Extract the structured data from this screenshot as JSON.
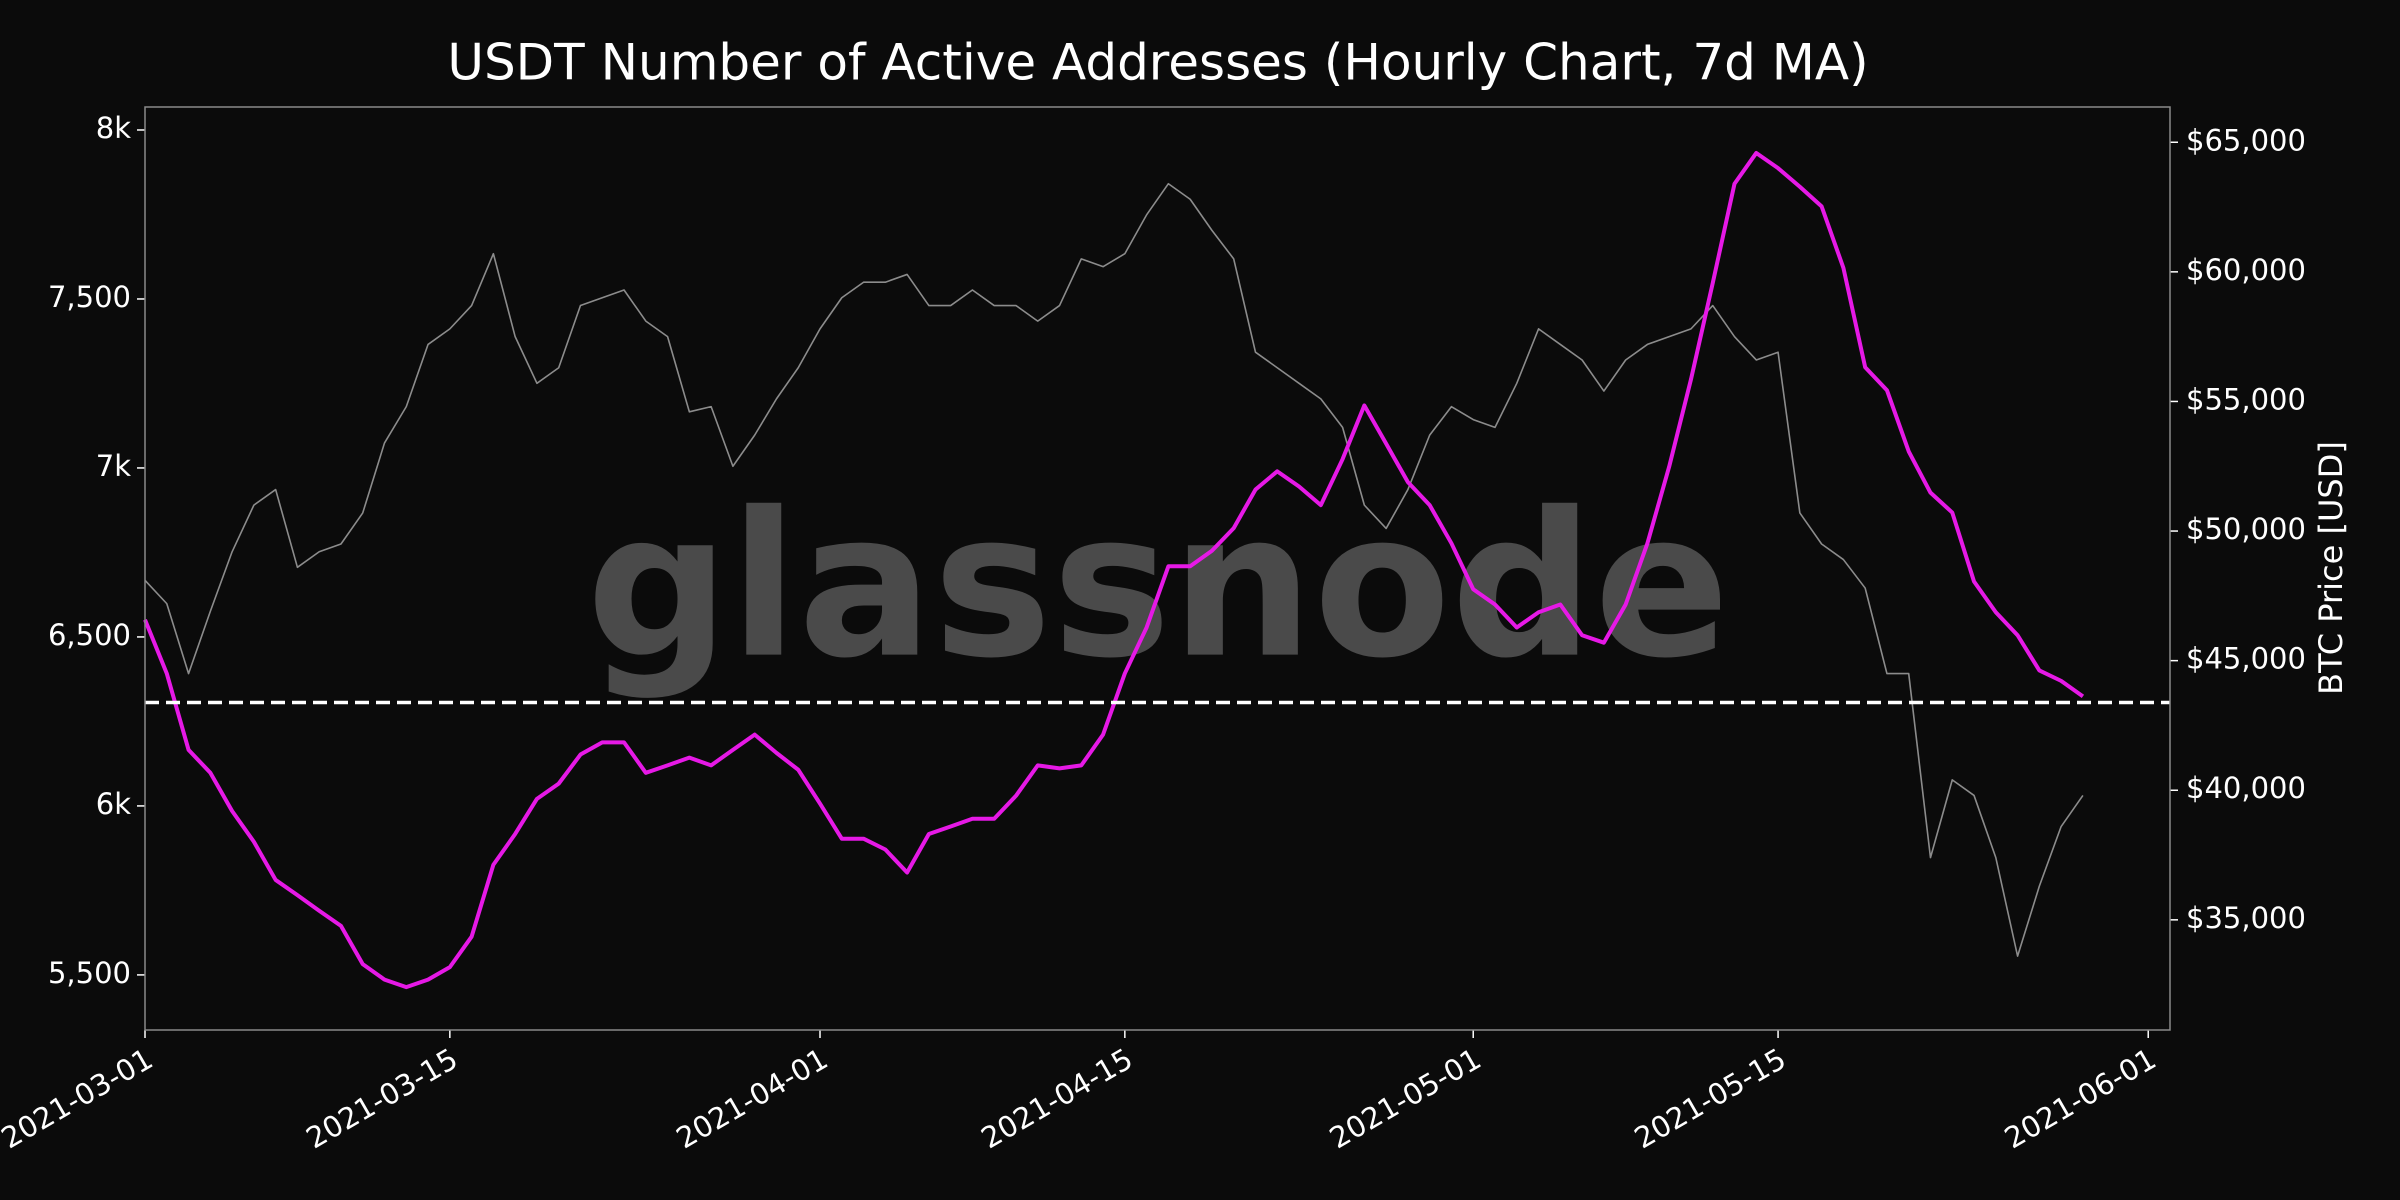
{
  "chart_data": {
    "type": "line",
    "title": "USDT Number of Active Addresses (Hourly Chart, 7d MA)",
    "y2_label": "BTC Price [USD]",
    "watermark": "glassnode",
    "x": [
      "2021-03-01",
      "2021-03-02",
      "2021-03-03",
      "2021-03-04",
      "2021-03-05",
      "2021-03-06",
      "2021-03-07",
      "2021-03-08",
      "2021-03-09",
      "2021-03-10",
      "2021-03-11",
      "2021-03-12",
      "2021-03-13",
      "2021-03-14",
      "2021-03-15",
      "2021-03-16",
      "2021-03-17",
      "2021-03-18",
      "2021-03-19",
      "2021-03-20",
      "2021-03-21",
      "2021-03-22",
      "2021-03-23",
      "2021-03-24",
      "2021-03-25",
      "2021-03-26",
      "2021-03-27",
      "2021-03-28",
      "2021-03-29",
      "2021-03-30",
      "2021-03-31",
      "2021-04-01",
      "2021-04-02",
      "2021-04-03",
      "2021-04-04",
      "2021-04-05",
      "2021-04-06",
      "2021-04-07",
      "2021-04-08",
      "2021-04-09",
      "2021-04-10",
      "2021-04-11",
      "2021-04-12",
      "2021-04-13",
      "2021-04-14",
      "2021-04-15",
      "2021-04-16",
      "2021-04-17",
      "2021-04-18",
      "2021-04-19",
      "2021-04-20",
      "2021-04-21",
      "2021-04-22",
      "2021-04-23",
      "2021-04-24",
      "2021-04-25",
      "2021-04-26",
      "2021-04-27",
      "2021-04-28",
      "2021-04-29",
      "2021-04-30",
      "2021-05-01",
      "2021-05-02",
      "2021-05-03",
      "2021-05-04",
      "2021-05-05",
      "2021-05-06",
      "2021-05-07",
      "2021-05-08",
      "2021-05-09",
      "2021-05-10",
      "2021-05-11",
      "2021-05-12",
      "2021-05-13",
      "2021-05-14",
      "2021-05-15",
      "2021-05-16",
      "2021-05-17",
      "2021-05-18",
      "2021-05-19",
      "2021-05-20",
      "2021-05-21",
      "2021-05-22",
      "2021-05-23",
      "2021-05-24",
      "2021-05-25",
      "2021-05-26",
      "2021-05-27",
      "2021-05-28",
      "2021-05-29"
    ],
    "series": [
      {
        "color": "#8c8c8c",
        "axis": "y2",
        "values": [
          48100,
          47200,
          44500,
          46900,
          49200,
          51000,
          51600,
          48600,
          49200,
          49500,
          50700,
          53400,
          54800,
          57200,
          57800,
          58700,
          60700,
          57500,
          55700,
          56300,
          58700,
          59000,
          59300,
          58100,
          57500,
          54600,
          54800,
          52500,
          53700,
          55100,
          56300,
          57800,
          59000,
          59600,
          59600,
          59900,
          58700,
          58700,
          59300,
          58700,
          58700,
          58100,
          58700,
          60500,
          60200,
          60700,
          62200,
          63400,
          62800,
          61600,
          60500,
          56900,
          56300,
          55700,
          55100,
          54000,
          51000,
          50100,
          51600,
          53700,
          54800,
          54300,
          54000,
          55700,
          57800,
          57200,
          56600,
          55400,
          56600,
          57200,
          57500,
          57800,
          58700,
          57500,
          56600,
          56900,
          50700,
          49500,
          48900,
          47800,
          44500,
          44500,
          37400,
          40400,
          39800,
          37400,
          33600,
          36300,
          38600,
          39800
        ]
      },
      {
        "color": "#e619e6",
        "values": [
          6551,
          6392,
          6166,
          6098,
          5985,
          5894,
          5781,
          5736,
          5690,
          5645,
          5532,
          5486,
          5464,
          5486,
          5523,
          5613,
          5826,
          5917,
          6021,
          6066,
          6152,
          6188,
          6188,
          6098,
          6120,
          6143,
          6120,
          6166,
          6211,
          6157,
          6107,
          6007,
          5903,
          5903,
          5871,
          5803,
          5917,
          5939,
          5962,
          5962,
          6030,
          6120,
          6111,
          6120,
          6211,
          6392,
          6528,
          6709,
          6709,
          6755,
          6822,
          6936,
          6990,
          6945,
          6890,
          7026,
          7185,
          7072,
          6958,
          6890,
          6777,
          6641,
          6596,
          6528,
          6573,
          6596,
          6505,
          6483,
          6596,
          6777,
          7004,
          7262,
          7547,
          7841,
          7932,
          7887,
          7832,
          7774,
          7592,
          7298,
          7230,
          7049,
          6927,
          6868,
          6664,
          6573,
          6505,
          6401,
          6370,
          6324
        ]
      }
    ],
    "hline": 6306,
    "xlim": [
      "2021-03-01",
      "2021-06-02"
    ],
    "xticks": [
      "2021-03-01",
      "2021-03-15",
      "2021-04-01",
      "2021-04-15",
      "2021-05-01",
      "2021-05-15",
      "2021-06-01"
    ],
    "ylim": [
      5337,
      8068
    ],
    "yticks": [
      {
        "value": 5500,
        "label": "5,500"
      },
      {
        "value": 6000,
        "label": "6k"
      },
      {
        "value": 6500,
        "label": "6,500"
      },
      {
        "value": 7000,
        "label": "7k"
      },
      {
        "value": 7500,
        "label": "7,500"
      },
      {
        "value": 8000,
        "label": "8k"
      }
    ],
    "y2lim": [
      30750,
      66360
    ],
    "y2ticks": [
      {
        "value": 35000,
        "label": "$35,000"
      },
      {
        "value": 40000,
        "label": "$40,000"
      },
      {
        "value": 45000,
        "label": "$45,000"
      },
      {
        "value": 50000,
        "label": "$50,000"
      },
      {
        "value": 55000,
        "label": "$55,000"
      },
      {
        "value": 60000,
        "label": "$60,000"
      },
      {
        "value": 65000,
        "label": "$65,000"
      }
    ]
  }
}
